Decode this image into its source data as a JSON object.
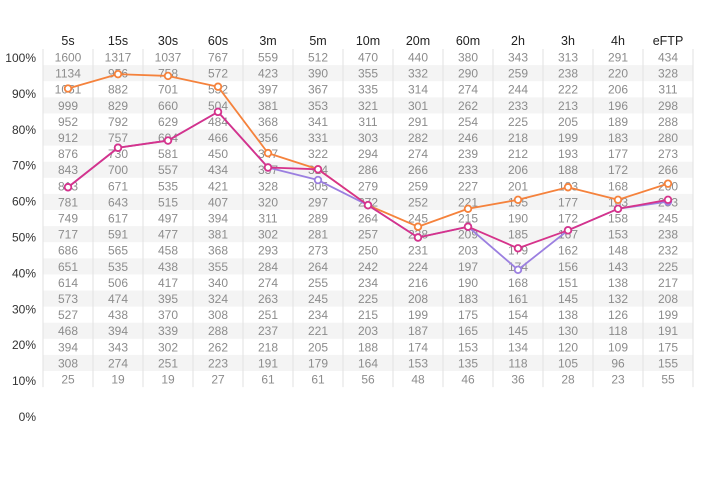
{
  "chart_data": {
    "type": "table",
    "columns": [
      "5s",
      "15s",
      "30s",
      "60s",
      "3m",
      "5m",
      "10m",
      "20m",
      "60m",
      "2h",
      "3h",
      "4h",
      "eFTP"
    ],
    "y_ticks": [
      "100%",
      "90%",
      "80%",
      "70%",
      "60%",
      "50%",
      "40%",
      "30%",
      "20%",
      "10%",
      "0%"
    ],
    "ylim": [
      0,
      100
    ],
    "grid": true,
    "rows": [
      [
        1600,
        1317,
        1037,
        767,
        559,
        512,
        470,
        440,
        380,
        343,
        313,
        291,
        434
      ],
      [
        1134,
        956,
        758,
        572,
        423,
        390,
        355,
        332,
        290,
        259,
        238,
        220,
        328
      ],
      [
        1051,
        882,
        701,
        532,
        397,
        367,
        335,
        314,
        274,
        244,
        222,
        206,
        311
      ],
      [
        999,
        829,
        660,
        504,
        381,
        353,
        321,
        301,
        262,
        233,
        213,
        196,
        298
      ],
      [
        952,
        792,
        629,
        484,
        368,
        341,
        311,
        291,
        254,
        225,
        205,
        189,
        288
      ],
      [
        912,
        757,
        604,
        466,
        356,
        331,
        303,
        282,
        246,
        218,
        199,
        183,
        280
      ],
      [
        876,
        730,
        581,
        450,
        347,
        322,
        294,
        274,
        239,
        212,
        193,
        177,
        273
      ],
      [
        843,
        700,
        557,
        434,
        337,
        314,
        286,
        266,
        233,
        206,
        188,
        172,
        266
      ],
      [
        813,
        671,
        535,
        421,
        328,
        305,
        279,
        259,
        227,
        201,
        183,
        168,
        260
      ],
      [
        781,
        643,
        515,
        407,
        320,
        297,
        272,
        252,
        221,
        195,
        177,
        163,
        253
      ],
      [
        749,
        617,
        497,
        394,
        311,
        289,
        264,
        245,
        215,
        190,
        172,
        158,
        245
      ],
      [
        717,
        591,
        477,
        381,
        302,
        281,
        257,
        238,
        209,
        185,
        167,
        153,
        238
      ],
      [
        686,
        565,
        458,
        368,
        293,
        273,
        250,
        231,
        203,
        179,
        162,
        148,
        232
      ],
      [
        651,
        535,
        438,
        355,
        284,
        264,
        242,
        224,
        197,
        174,
        156,
        143,
        225
      ],
      [
        614,
        506,
        417,
        340,
        274,
        255,
        234,
        216,
        190,
        168,
        151,
        138,
        217
      ],
      [
        573,
        474,
        395,
        324,
        263,
        245,
        225,
        208,
        183,
        161,
        145,
        132,
        208
      ],
      [
        527,
        438,
        370,
        308,
        251,
        234,
        215,
        199,
        175,
        154,
        138,
        126,
        199
      ],
      [
        468,
        394,
        339,
        288,
        237,
        221,
        203,
        187,
        165,
        145,
        130,
        118,
        191
      ],
      [
        394,
        343,
        302,
        262,
        218,
        205,
        188,
        174,
        153,
        134,
        120,
        109,
        175
      ],
      [
        308,
        274,
        251,
        223,
        191,
        179,
        164,
        153,
        135,
        118,
        105,
        96,
        155
      ],
      [
        25,
        19,
        19,
        27,
        61,
        61,
        56,
        48,
        46,
        36,
        28,
        23,
        55
      ]
    ],
    "series": [
      {
        "color": "#f5823c",
        "values": [
          91.5,
          95.5,
          95,
          92,
          73.5,
          69,
          59,
          53,
          58,
          60.5,
          64,
          60.5,
          65
        ]
      },
      {
        "color": "#9b7fe0",
        "values": [
          64,
          75,
          77,
          85,
          69.5,
          66,
          59,
          50,
          53,
          41,
          52,
          58,
          60
        ]
      },
      {
        "color": "#d6338b",
        "values": [
          64,
          75,
          77,
          85,
          69.5,
          69,
          59,
          50,
          53,
          47,
          52,
          58,
          60.5
        ]
      }
    ]
  }
}
